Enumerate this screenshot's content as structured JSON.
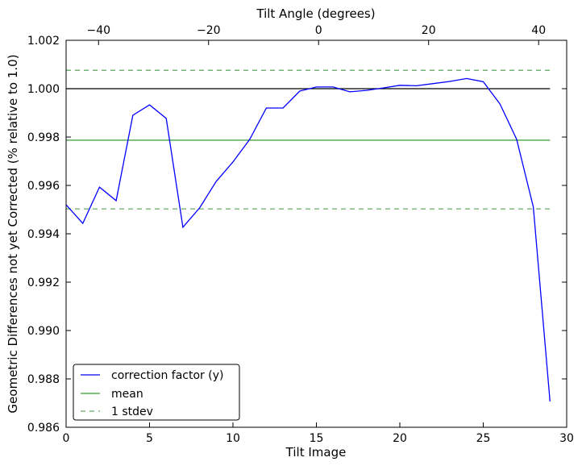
{
  "chart_data": {
    "type": "line",
    "xlabel": "Tilt Image",
    "ylabel": "Geometric Differences not yet Corrected (% relative to 1.0)",
    "top_xlabel": "Tilt Angle (degrees)",
    "xlim": [
      0,
      30
    ],
    "ylim": [
      0.986,
      1.002
    ],
    "top_xlim": [
      -45.9,
      45.1
    ],
    "xticks": [
      0,
      5,
      10,
      15,
      20,
      25,
      30
    ],
    "xtick_labels": [
      "0",
      "5",
      "10",
      "15",
      "20",
      "25",
      "30"
    ],
    "yticks": [
      0.986,
      0.988,
      0.99,
      0.992,
      0.994,
      0.996,
      0.998,
      1.0,
      1.002
    ],
    "ytick_labels": [
      "0.986",
      "0.988",
      "0.990",
      "0.992",
      "0.994",
      "0.996",
      "0.998",
      "1.000",
      "1.002"
    ],
    "top_xticks": [
      -40,
      -20,
      0,
      20,
      40
    ],
    "top_xtick_labels": [
      "−40",
      "−20",
      "0",
      "20",
      "40"
    ],
    "grid": false,
    "legend_placement": "lower-left",
    "series": [
      {
        "name": "correction factor (y)",
        "color": "#0000ff",
        "style": "solid",
        "x": [
          0,
          1,
          2,
          3,
          4,
          5,
          6,
          7,
          8,
          9,
          10,
          11,
          12,
          13,
          14,
          15,
          16,
          17,
          18,
          19,
          20,
          21,
          22,
          23,
          24,
          25,
          26,
          27,
          28,
          29
        ],
        "y": [
          0.9952,
          0.99443,
          0.99593,
          0.99537,
          0.9989,
          0.99933,
          0.99877,
          0.99427,
          0.99507,
          0.99617,
          0.99697,
          0.9979,
          0.9992,
          0.9992,
          0.9999,
          1.00007,
          1.00007,
          0.99987,
          0.99993,
          1.00003,
          1.00014,
          1.00012,
          1.00021,
          1.0003,
          1.00042,
          1.00029,
          0.99937,
          0.99791,
          0.99511,
          0.98707
        ]
      },
      {
        "name": "mean",
        "color": "#339933",
        "style": "solid",
        "value": 0.99787
      },
      {
        "name": "1 stdev",
        "color": "#66aa66",
        "style": "dashed",
        "values": [
          1.00076,
          0.99503
        ]
      }
    ],
    "reference_line": {
      "value": 1.0,
      "color": "#000000"
    }
  }
}
